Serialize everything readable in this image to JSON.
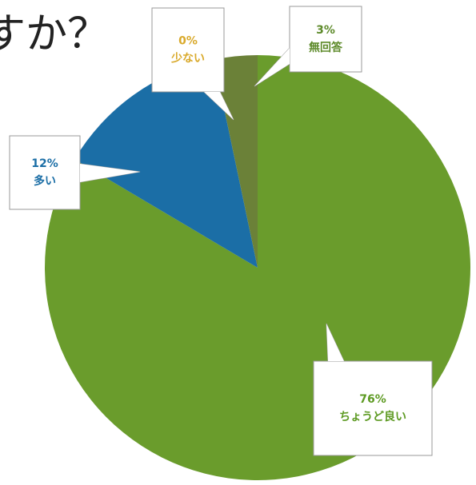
{
  "chart_data": {
    "type": "pie",
    "title": "すか？",
    "categories": [
      "ちょうど良い",
      "多い",
      "少ない",
      "無回答"
    ],
    "values": [
      76,
      12,
      0,
      3
    ],
    "value_labels": [
      "76%",
      "12%",
      "0%",
      "3%"
    ],
    "colors": [
      "#6a9c2c",
      "#1b6ea6",
      "#d9a92a",
      "#6b8138"
    ],
    "label_colors": [
      "#5d9a22",
      "#1b6ea6",
      "#d9a92a",
      "#5d8a2a"
    ]
  }
}
